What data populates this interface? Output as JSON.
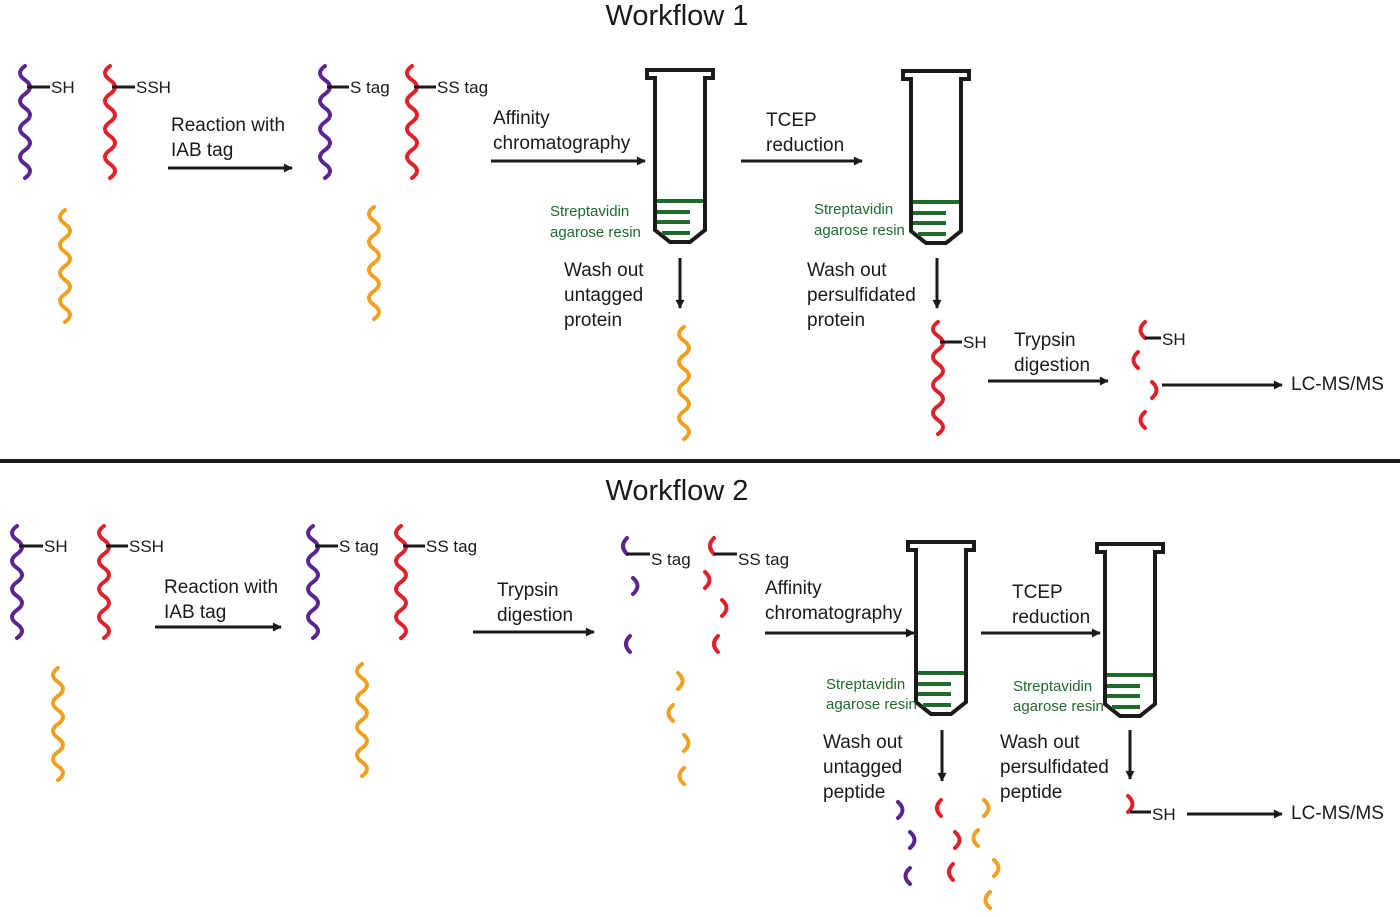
{
  "colors": {
    "purple": "#5a2590",
    "red": "#e0202a",
    "orange": "#f0a020",
    "green": "#1e6b2a",
    "black": "#1a1a1a"
  },
  "workflow1": {
    "title": "Workflow 1",
    "sh_label": "SH",
    "ssh_label": "SSH",
    "step1_line1": "Reaction with",
    "step1_line2": "IAB tag",
    "s_tag": "S tag",
    "ss_tag": "SS tag",
    "step2_line1": "Affinity",
    "step2_line2": "chromatography",
    "resin1_line1": "Streptavidin",
    "resin1_line2": "agarose resin",
    "wash1_line1": "Wash out",
    "wash1_line2": "untagged",
    "wash1_line3": "protein",
    "step3_line1": "TCEP",
    "step3_line2": "reduction",
    "resin2_line1": "Streptavidin",
    "resin2_line2": "agarose resin",
    "wash2_line1": "Wash out",
    "wash2_line2": "persulfidated",
    "wash2_line3": "protein",
    "sh_label2": "SH",
    "step4_line1": "Trypsin",
    "step4_line2": "digestion",
    "sh_label3": "SH",
    "output": "LC-MS/MS"
  },
  "workflow2": {
    "title": "Workflow 2",
    "sh_label": "SH",
    "ssh_label": "SSH",
    "step1_line1": "Reaction with",
    "step1_line2": "IAB tag",
    "s_tag": "S tag",
    "ss_tag": "SS tag",
    "step2_line1": "Trypsin",
    "step2_line2": "digestion",
    "s_tag2": "S tag",
    "ss_tag2": "SS tag",
    "step3_line1": "Affinity",
    "step3_line2": "chromatography",
    "resin1_line1": "Streptavidin",
    "resin1_line2": "agarose resin",
    "wash1_line1": "Wash out",
    "wash1_line2": "untagged",
    "wash1_line3": "peptide",
    "step4_line1": "TCEP",
    "step4_line2": "reduction",
    "resin2_line1": "Streptavidin",
    "resin2_line2": "agarose resin",
    "wash2_line1": "Wash out",
    "wash2_line2": "persulfidated",
    "wash2_line3": "peptide",
    "sh_label2": "SH",
    "output": "LC-MS/MS"
  }
}
